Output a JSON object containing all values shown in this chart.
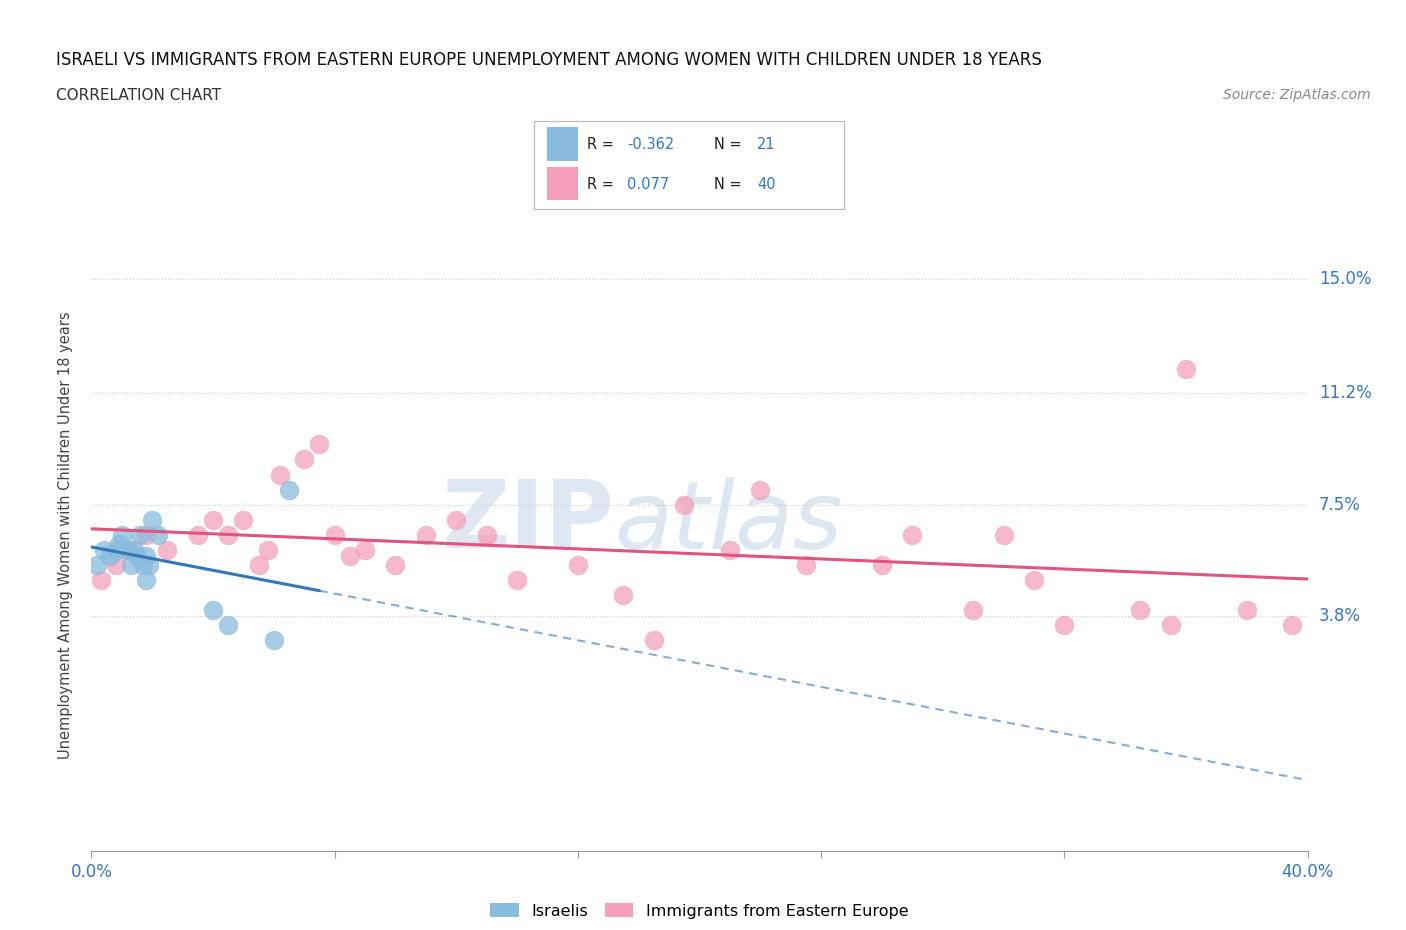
{
  "title_line1": "ISRAELI VS IMMIGRANTS FROM EASTERN EUROPE UNEMPLOYMENT AMONG WOMEN WITH CHILDREN UNDER 18 YEARS",
  "title_line2": "CORRELATION CHART",
  "source_text": "Source: ZipAtlas.com",
  "ylabel": "Unemployment Among Women with Children Under 18 years",
  "xlim": [
    0.0,
    0.4
  ],
  "ylim": [
    -0.04,
    0.17
  ],
  "xtick_pos": [
    0.0,
    0.08,
    0.16,
    0.24,
    0.32,
    0.4
  ],
  "xticklabels": [
    "0.0%",
    "",
    "",
    "",
    "",
    "40.0%"
  ],
  "ytick_positions": [
    0.038,
    0.075,
    0.112,
    0.15
  ],
  "ytick_labels": [
    "3.8%",
    "7.5%",
    "11.2%",
    "15.0%"
  ],
  "gridline_y": [
    0.038,
    0.075,
    0.112,
    0.15
  ],
  "israeli_R": -0.362,
  "israeli_N": 21,
  "immigrant_R": 0.077,
  "immigrant_N": 40,
  "israeli_color": "#88bbdd",
  "immigrant_color": "#f4a0bb",
  "israeli_line_color": "#3377bb",
  "immigrant_line_color": "#e05580",
  "israeli_x": [
    0.002,
    0.004,
    0.006,
    0.008,
    0.009,
    0.01,
    0.012,
    0.013,
    0.014,
    0.015,
    0.016,
    0.017,
    0.018,
    0.018,
    0.019,
    0.02,
    0.022,
    0.04,
    0.045,
    0.06,
    0.065
  ],
  "israeli_y": [
    0.055,
    0.06,
    0.058,
    0.06,
    0.062,
    0.065,
    0.06,
    0.055,
    0.06,
    0.058,
    0.065,
    0.055,
    0.058,
    0.05,
    0.055,
    0.07,
    0.065,
    0.04,
    0.035,
    0.03,
    0.08
  ],
  "immigrant_x": [
    0.003,
    0.008,
    0.012,
    0.018,
    0.025,
    0.035,
    0.04,
    0.045,
    0.05,
    0.055,
    0.058,
    0.062,
    0.07,
    0.075,
    0.08,
    0.085,
    0.09,
    0.1,
    0.11,
    0.12,
    0.13,
    0.14,
    0.16,
    0.175,
    0.185,
    0.195,
    0.21,
    0.22,
    0.235,
    0.26,
    0.27,
    0.29,
    0.3,
    0.31,
    0.32,
    0.345,
    0.355,
    0.36,
    0.38,
    0.395
  ],
  "immigrant_y": [
    0.05,
    0.055,
    0.06,
    0.065,
    0.06,
    0.065,
    0.07,
    0.065,
    0.07,
    0.055,
    0.06,
    0.085,
    0.09,
    0.095,
    0.065,
    0.058,
    0.06,
    0.055,
    0.065,
    0.07,
    0.065,
    0.05,
    0.055,
    0.045,
    0.03,
    0.075,
    0.06,
    0.08,
    0.055,
    0.055,
    0.065,
    0.04,
    0.065,
    0.05,
    0.035,
    0.04,
    0.035,
    0.12,
    0.04,
    0.035
  ],
  "watermark_zip": "ZIP",
  "watermark_atlas": "atlas",
  "background_color": "#ffffff"
}
